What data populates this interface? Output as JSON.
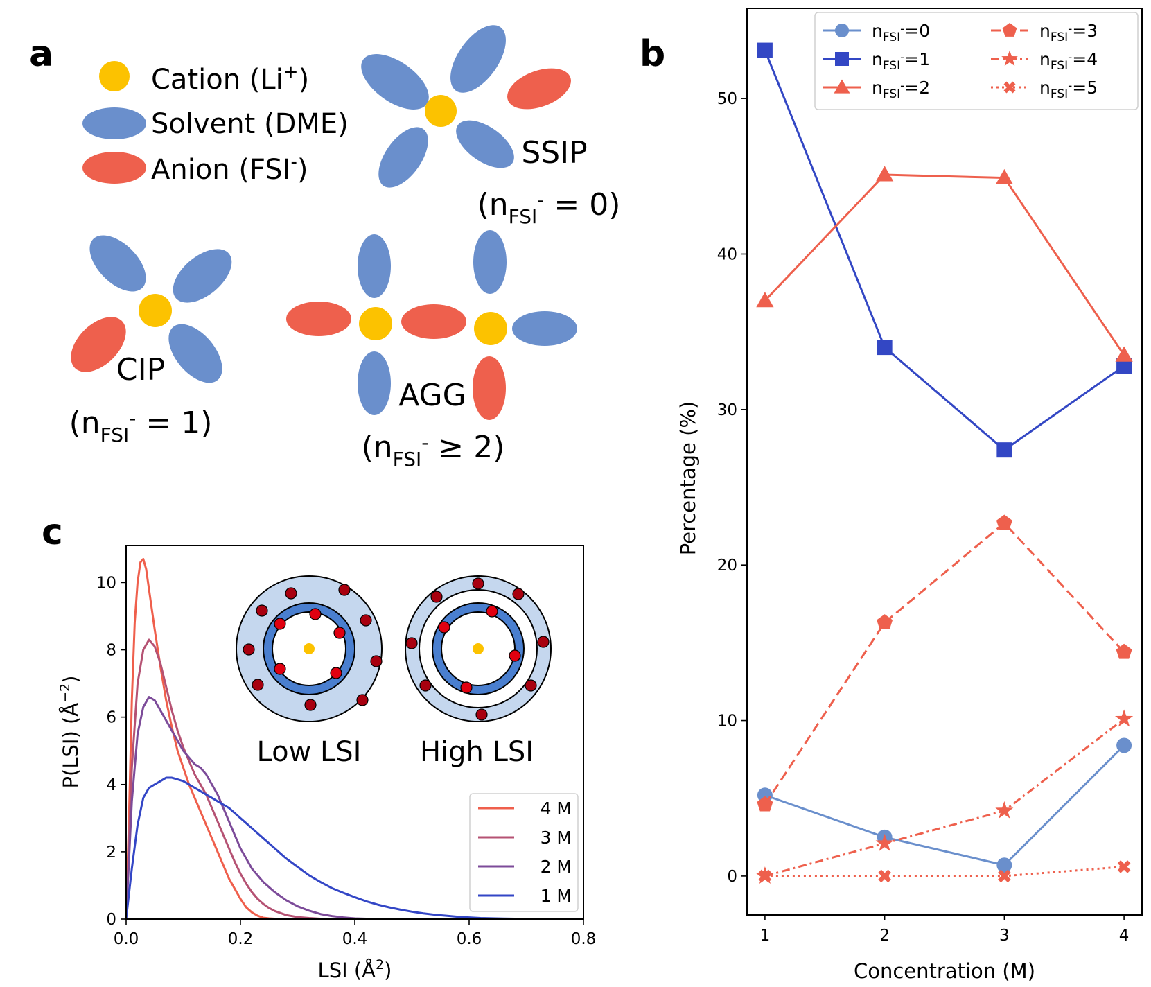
{
  "colors": {
    "cation": "#FCC200",
    "solvent": "#6A8FCC",
    "anion": "#EE604D",
    "n0": "#6A8FCC",
    "n1": "#3347C4",
    "n2": "#EE604D",
    "c4M": "#EF5F4C",
    "c3M": "#B55273",
    "c2M": "#7C4B99",
    "c1M": "#3346C6"
  },
  "panel_a": {
    "letter": "a",
    "legend": {
      "cation_label": "Cation (Li",
      "cation_sup": "+",
      "cation_close": ")",
      "solvent_label": "Solvent (DME)",
      "anion_label": "Anion (FSI",
      "anion_sup": "-",
      "anion_close": ")"
    },
    "ssip": {
      "name": "SSIP",
      "n_open": "(n",
      "n_sub": "FSI",
      "n_sup": "-",
      "n_value": " = 0)"
    },
    "cip": {
      "name": "CIP",
      "n_open": "(n",
      "n_sub": "FSI",
      "n_sup": "-",
      "n_value": " = 1)"
    },
    "agg": {
      "name": "AGG",
      "n_open": "(n",
      "n_sub": "FSI",
      "n_sup": "-",
      "n_value": " ≥ 2)"
    }
  },
  "chart_data": [
    {
      "panel": "b",
      "type": "line",
      "title": "",
      "xlabel": "Concentration (M)",
      "ylabel": "Percentage (%)",
      "x": [
        1,
        2,
        3,
        4
      ],
      "xlim": [
        0.85,
        4.15
      ],
      "ylim": [
        -2.5,
        55.8
      ],
      "xticks": [
        1,
        2,
        3,
        4
      ],
      "yticks": [
        0,
        10,
        20,
        30,
        40,
        50
      ],
      "legend_position": "top-right",
      "series": [
        {
          "name_base": "n",
          "name_sub": "FSI",
          "name_sup": "-",
          "name_value": "=0",
          "color": "#6A8FCC",
          "marker": "circle",
          "linestyle": "solid",
          "values": [
            5.2,
            2.5,
            0.7,
            8.4
          ]
        },
        {
          "name_base": "n",
          "name_sub": "FSI",
          "name_sup": "-",
          "name_value": "=1",
          "color": "#3347C4",
          "marker": "square",
          "linestyle": "solid",
          "values": [
            53.1,
            34.0,
            27.4,
            32.8
          ]
        },
        {
          "name_base": "n",
          "name_sub": "FSI",
          "name_sup": "-",
          "name_value": "=2",
          "color": "#EE604D",
          "marker": "triangle",
          "linestyle": "solid",
          "values": [
            37.0,
            45.1,
            44.9,
            33.5
          ]
        },
        {
          "name_base": "n",
          "name_sub": "FSI",
          "name_sup": "-",
          "name_value": "=3",
          "color": "#EE604D",
          "marker": "pentagon",
          "linestyle": "dashed",
          "values": [
            4.6,
            16.3,
            22.7,
            14.4
          ]
        },
        {
          "name_base": "n",
          "name_sub": "FSI",
          "name_sup": "-",
          "name_value": "=4",
          "color": "#EE604D",
          "marker": "star",
          "linestyle": "dashdot",
          "values": [
            0.0,
            2.1,
            4.2,
            10.1
          ]
        },
        {
          "name_base": "n",
          "name_sub": "FSI",
          "name_sup": "-",
          "name_value": "=5",
          "color": "#EE604D",
          "marker": "x",
          "linestyle": "dotted",
          "values": [
            0.0,
            0.0,
            0.0,
            0.6
          ]
        }
      ]
    },
    {
      "panel": "c",
      "type": "line",
      "title": "",
      "xlabel_base": "LSI (Å",
      "xlabel_sup": "2",
      "xlabel_close": ")",
      "ylabel_base": "P(LSI) (Å",
      "ylabel_sup": "−2",
      "ylabel_close": ")",
      "xlim": [
        0.0,
        0.8
      ],
      "ylim": [
        0.0,
        11.1
      ],
      "xticks": [
        0.0,
        0.2,
        0.4,
        0.6,
        0.8
      ],
      "xtick_labels": [
        "0.0",
        "0.2",
        "0.4",
        "0.6",
        "0.8"
      ],
      "yticks": [
        0,
        2,
        4,
        6,
        8,
        10
      ],
      "legend_position": "bottom-right",
      "series": [
        {
          "name": "4 M",
          "color": "#EF5F4C",
          "x": [
            0.0,
            0.005,
            0.01,
            0.015,
            0.02,
            0.025,
            0.03,
            0.035,
            0.04,
            0.045,
            0.05,
            0.06,
            0.07,
            0.08,
            0.09,
            0.1,
            0.11,
            0.12,
            0.13,
            0.14,
            0.15,
            0.16,
            0.17,
            0.18,
            0.19,
            0.2,
            0.21,
            0.22,
            0.23,
            0.24,
            0.25,
            0.26,
            0.28
          ],
          "y": [
            0.0,
            3.0,
            6.5,
            8.8,
            10.0,
            10.6,
            10.7,
            10.4,
            9.8,
            9.2,
            8.6,
            7.5,
            6.5,
            5.7,
            5.0,
            4.5,
            4.0,
            3.6,
            3.2,
            2.8,
            2.4,
            2.0,
            1.6,
            1.2,
            0.9,
            0.6,
            0.35,
            0.2,
            0.1,
            0.04,
            0.02,
            0.01,
            0.0
          ]
        },
        {
          "name": "3 M",
          "color": "#B55273",
          "x": [
            0.0,
            0.01,
            0.02,
            0.03,
            0.04,
            0.05,
            0.06,
            0.07,
            0.08,
            0.09,
            0.1,
            0.11,
            0.12,
            0.13,
            0.14,
            0.15,
            0.16,
            0.17,
            0.18,
            0.19,
            0.2,
            0.21,
            0.22,
            0.23,
            0.24,
            0.25,
            0.26,
            0.28,
            0.3,
            0.32,
            0.34,
            0.36
          ],
          "y": [
            0.0,
            4.5,
            7.0,
            8.0,
            8.3,
            8.1,
            7.6,
            6.9,
            6.2,
            5.6,
            5.1,
            4.7,
            4.3,
            4.0,
            3.7,
            3.3,
            2.9,
            2.5,
            2.1,
            1.7,
            1.35,
            1.05,
            0.8,
            0.6,
            0.45,
            0.33,
            0.24,
            0.12,
            0.06,
            0.03,
            0.01,
            0.0
          ]
        },
        {
          "name": "2 M",
          "color": "#7C4B99",
          "x": [
            0.0,
            0.01,
            0.02,
            0.03,
            0.04,
            0.05,
            0.06,
            0.07,
            0.08,
            0.09,
            0.1,
            0.11,
            0.12,
            0.13,
            0.14,
            0.15,
            0.16,
            0.17,
            0.18,
            0.19,
            0.2,
            0.21,
            0.22,
            0.24,
            0.26,
            0.28,
            0.3,
            0.32,
            0.34,
            0.36,
            0.38,
            0.4,
            0.42,
            0.45
          ],
          "y": [
            0.0,
            3.5,
            5.5,
            6.3,
            6.6,
            6.5,
            6.2,
            5.9,
            5.6,
            5.3,
            5.0,
            4.8,
            4.6,
            4.5,
            4.3,
            4.0,
            3.7,
            3.3,
            2.9,
            2.5,
            2.1,
            1.8,
            1.5,
            1.1,
            0.8,
            0.56,
            0.38,
            0.25,
            0.15,
            0.09,
            0.05,
            0.02,
            0.01,
            0.0
          ]
        },
        {
          "name": "1 M",
          "color": "#3346C6",
          "x": [
            0.0,
            0.01,
            0.02,
            0.03,
            0.04,
            0.05,
            0.06,
            0.07,
            0.08,
            0.09,
            0.1,
            0.11,
            0.12,
            0.13,
            0.14,
            0.15,
            0.16,
            0.18,
            0.2,
            0.22,
            0.24,
            0.26,
            0.28,
            0.3,
            0.32,
            0.34,
            0.36,
            0.38,
            0.4,
            0.42,
            0.44,
            0.46,
            0.48,
            0.5,
            0.52,
            0.54,
            0.56,
            0.58,
            0.6,
            0.62,
            0.66,
            0.7,
            0.75
          ],
          "y": [
            0.0,
            1.5,
            2.8,
            3.6,
            3.9,
            4.0,
            4.1,
            4.2,
            4.2,
            4.15,
            4.1,
            4.0,
            3.9,
            3.8,
            3.7,
            3.6,
            3.5,
            3.3,
            3.0,
            2.7,
            2.4,
            2.1,
            1.8,
            1.55,
            1.3,
            1.1,
            0.92,
            0.78,
            0.65,
            0.53,
            0.43,
            0.35,
            0.28,
            0.22,
            0.17,
            0.13,
            0.1,
            0.07,
            0.05,
            0.03,
            0.015,
            0.005,
            0.0
          ]
        }
      ],
      "inset": {
        "low_label": "Low LSI",
        "high_label": "High  LSI"
      }
    }
  ]
}
